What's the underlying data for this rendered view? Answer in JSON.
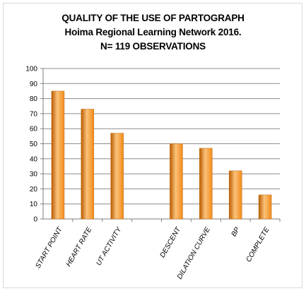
{
  "chart_data": {
    "type": "bar",
    "title": "QUALITY OF THE USE OF PARTOGRAPH",
    "subtitle": "Hoima Regional Learning Network 2016.",
    "note": "N= 119 OBSERVATIONS",
    "xlabel": "",
    "ylabel": "",
    "categories": [
      "START POINT",
      "HEART RATE",
      "UT ACTIVITY",
      "",
      "DESCENT",
      "DILATION CURVE",
      "BP",
      "COMPLETE"
    ],
    "values": [
      85,
      73,
      57,
      null,
      50,
      47,
      32,
      16
    ],
    "ylim": [
      0,
      100
    ],
    "yticks": [
      0,
      10,
      20,
      30,
      40,
      50,
      60,
      70,
      80,
      90,
      100
    ],
    "grid": true,
    "legend": "none",
    "bar_color": "#f28a1a",
    "bar_color_light": "#fbc27a",
    "bar_color_dark": "#b85c00"
  }
}
